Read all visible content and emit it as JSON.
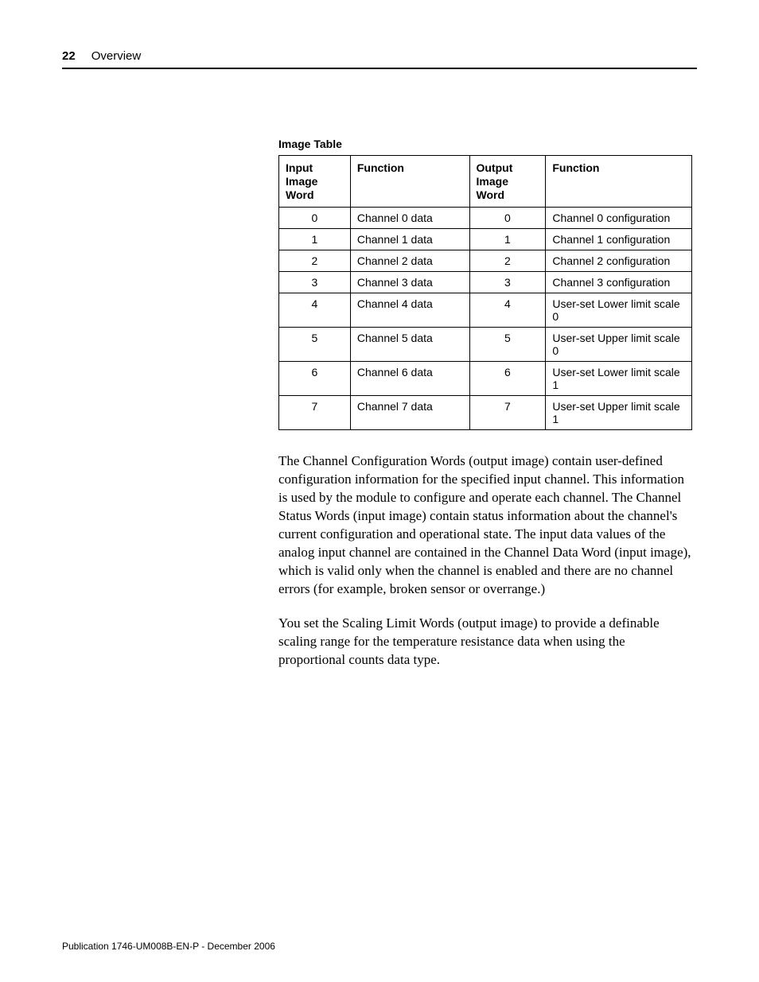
{
  "header": {
    "page_number": "22",
    "section": "Overview"
  },
  "table": {
    "title": "Image Table",
    "columns": [
      "Input Image Word",
      "Function",
      "Output Image Word",
      "Function"
    ],
    "rows": [
      [
        "0",
        "Channel 0 data",
        "0",
        "Channel 0 configuration"
      ],
      [
        "1",
        "Channel 1 data",
        "1",
        "Channel 1 configuration"
      ],
      [
        "2",
        "Channel 2 data",
        "2",
        "Channel 2 configuration"
      ],
      [
        "3",
        "Channel 3 data",
        "3",
        "Channel 3 configuration"
      ],
      [
        "4",
        "Channel 4 data",
        "4",
        "User-set Lower limit scale 0"
      ],
      [
        "5",
        "Channel 5 data",
        "5",
        "User-set Upper limit scale 0"
      ],
      [
        "6",
        "Channel 6 data",
        "6",
        "User-set Lower limit scale 1"
      ],
      [
        "7",
        "Channel 7 data",
        "7",
        "User-set Upper limit scale 1"
      ]
    ]
  },
  "paragraphs": {
    "p1": "The Channel Configuration Words (output image) contain user-defined configuration information for the specified input channel. This information is used by the module to configure and operate each channel. The Channel Status Words (input image) contain status information about the channel's current configuration and operational state. The input data values of the analog input channel are contained in the Channel Data Word (input image), which is valid only when the channel is enabled and there are no channel errors (for example, broken sensor or overrange.)",
    "p2": "You set the Scaling Limit Words (output image) to provide a definable scaling range for the temperature resistance data when using the proportional counts data type."
  },
  "footer": {
    "text": "Publication 1746-UM008B-EN-P - December 2006"
  }
}
